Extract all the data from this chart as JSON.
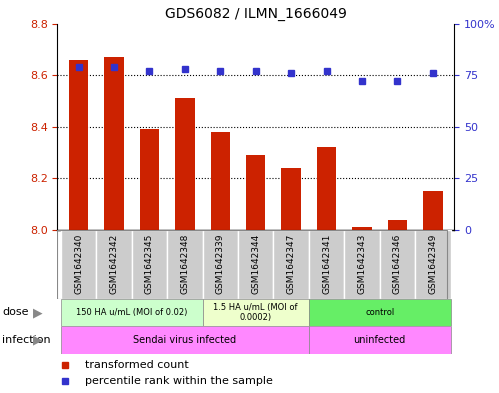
{
  "title": "GDS6082 / ILMN_1666049",
  "samples": [
    "GSM1642340",
    "GSM1642342",
    "GSM1642345",
    "GSM1642348",
    "GSM1642339",
    "GSM1642344",
    "GSM1642347",
    "GSM1642341",
    "GSM1642343",
    "GSM1642346",
    "GSM1642349"
  ],
  "bar_values": [
    8.66,
    8.67,
    8.39,
    8.51,
    8.38,
    8.29,
    8.24,
    8.32,
    8.01,
    8.04,
    8.15
  ],
  "percentile_values": [
    79,
    79,
    77,
    78,
    77,
    77,
    76,
    77,
    72,
    72,
    76
  ],
  "ylim_left": [
    8.0,
    8.8
  ],
  "ylim_right": [
    0,
    100
  ],
  "yticks_left": [
    8.0,
    8.2,
    8.4,
    8.6,
    8.8
  ],
  "yticks_right": [
    0,
    25,
    50,
    75,
    100
  ],
  "ytick_labels_right": [
    "0",
    "25",
    "50",
    "75",
    "100%"
  ],
  "bar_color": "#cc2200",
  "percentile_color": "#3333cc",
  "dose_groups": [
    {
      "label": "150 HA u/mL (MOI of 0.02)",
      "start": 0,
      "end": 4,
      "color": "#ccffcc"
    },
    {
      "label": "1.5 HA u/mL (MOI of\n0.0002)",
      "start": 4,
      "end": 7,
      "color": "#eeffcc"
    },
    {
      "label": "control",
      "start": 7,
      "end": 11,
      "color": "#66ee66"
    }
  ],
  "infection_groups": [
    {
      "label": "Sendai virus infected",
      "start": 0,
      "end": 7,
      "color": "#ff88ff"
    },
    {
      "label": "uninfected",
      "start": 7,
      "end": 11,
      "color": "#ff88ff"
    }
  ],
  "sample_label_bg": "#cccccc",
  "legend_items": [
    {
      "label": "transformed count",
      "color": "#cc2200"
    },
    {
      "label": "percentile rank within the sample",
      "color": "#3333cc"
    }
  ],
  "border_color": "#888888"
}
